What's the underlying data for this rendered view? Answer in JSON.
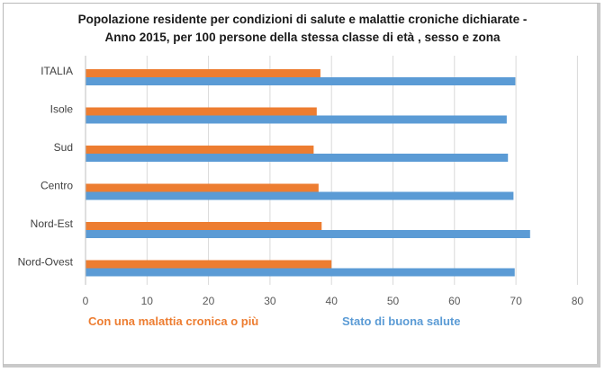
{
  "chart_data": {
    "type": "bar",
    "orientation": "horizontal",
    "title_line1": "Popolazione residente per condizioni di salute e malattie croniche dichiarate -",
    "title_line2": "Anno 2015, per 100 persone della stessa classe di età , sesso e zona",
    "categories": [
      "ITALIA",
      "Isole",
      "Sud",
      "Centro",
      "Nord-Est",
      "Nord-Ovest"
    ],
    "series": [
      {
        "name": "Con una malattia cronica o più",
        "color": "#ed7d31",
        "values": [
          38.2,
          37.6,
          37.1,
          37.9,
          38.4,
          40.0
        ]
      },
      {
        "name": "Stato di buona salute",
        "color": "#5b9bd5",
        "values": [
          69.9,
          68.5,
          68.7,
          69.6,
          72.3,
          69.8
        ]
      }
    ],
    "x_ticks": [
      0,
      10,
      20,
      30,
      40,
      50,
      60,
      70,
      80
    ],
    "xlim": [
      0,
      80
    ],
    "grid": "vertical",
    "legend_placement": "bottom"
  }
}
